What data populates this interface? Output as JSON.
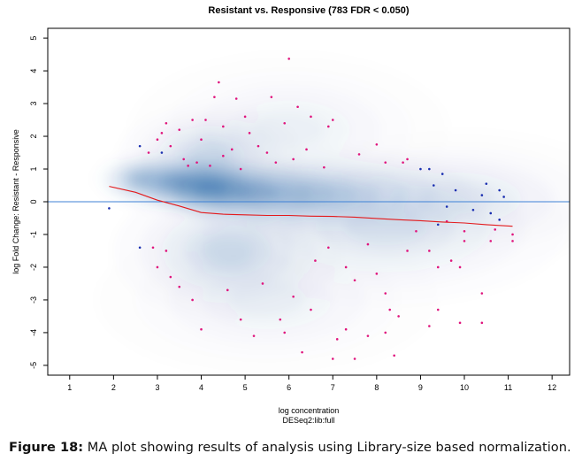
{
  "figure": {
    "caption_label": "Figure 18:",
    "caption_text": " MA plot showing results of analysis using Library-size based normalization."
  },
  "chart_data": {
    "type": "scatter",
    "title": "Resistant vs. Responsive (783 FDR < 0.050)",
    "xlabel": "log concentration",
    "xlabel_sub": "DESeq2:lib:full",
    "ylabel": "log Fold Change: Resistant - Responsive",
    "xlim": [
      0.5,
      12.4
    ],
    "ylim": [
      -5.3,
      5.3
    ],
    "xticks": [
      1,
      2,
      3,
      4,
      5,
      6,
      7,
      8,
      9,
      10,
      11,
      12
    ],
    "yticks": [
      -5,
      -4,
      -3,
      -2,
      -1,
      0,
      1,
      2,
      3,
      4,
      5
    ],
    "grid": false,
    "legend": "none",
    "reference_line_y": 0,
    "colors": {
      "density": "#08519c",
      "significant_points": "#e0157d",
      "blue_points": "#1a2fb0",
      "trend_line": "#e31a1c",
      "reference_line": "#3f82d6"
    },
    "series": [
      {
        "kind": "density",
        "clusters": [
          {
            "x": 4.2,
            "y": 0.45,
            "sx": 0.55,
            "sy": 0.35,
            "w": 1.0
          },
          {
            "x": 3.4,
            "y": 0.6,
            "sx": 0.6,
            "sy": 0.35,
            "w": 0.75
          },
          {
            "x": 5.2,
            "y": 0.3,
            "sx": 0.9,
            "sy": 0.4,
            "w": 0.7
          },
          {
            "x": 6.8,
            "y": 0.2,
            "sx": 1.3,
            "sy": 0.55,
            "w": 0.45
          },
          {
            "x": 4.6,
            "y": -1.5,
            "sx": 1.0,
            "sy": 0.8,
            "w": 0.35
          },
          {
            "x": 4.2,
            "y": 1.4,
            "sx": 0.8,
            "sy": 0.6,
            "w": 0.35
          },
          {
            "x": 8.2,
            "y": -0.8,
            "sx": 1.6,
            "sy": 0.9,
            "w": 0.25
          },
          {
            "x": 9.8,
            "y": 0.1,
            "sx": 1.5,
            "sy": 0.8,
            "w": 0.2
          },
          {
            "x": 5.5,
            "y": -3.0,
            "sx": 1.5,
            "sy": 0.9,
            "w": 0.15
          },
          {
            "x": 6.0,
            "y": 2.2,
            "sx": 1.4,
            "sy": 0.9,
            "w": 0.15
          },
          {
            "x": 2.6,
            "y": 0.7,
            "sx": 0.4,
            "sy": 0.3,
            "w": 0.5
          }
        ]
      },
      {
        "kind": "points",
        "color_key": "significant_points",
        "points": [
          [
            6.0,
            4.37
          ],
          [
            4.4,
            3.65
          ],
          [
            4.8,
            3.15
          ],
          [
            4.3,
            3.2
          ],
          [
            5.6,
            3.2
          ],
          [
            3.8,
            2.5
          ],
          [
            4.1,
            2.5
          ],
          [
            4.5,
            2.3
          ],
          [
            6.2,
            2.9
          ],
          [
            6.5,
            2.6
          ],
          [
            7.0,
            2.5
          ],
          [
            6.9,
            2.3
          ],
          [
            3.2,
            2.4
          ],
          [
            3.5,
            2.2
          ],
          [
            5.1,
            2.1
          ],
          [
            5.3,
            1.7
          ],
          [
            3.1,
            2.1
          ],
          [
            2.8,
            1.5
          ],
          [
            3.0,
            1.9
          ],
          [
            8.0,
            1.75
          ],
          [
            8.7,
            1.3
          ],
          [
            8.6,
            1.2
          ],
          [
            8.2,
            1.2
          ],
          [
            3.6,
            1.3
          ],
          [
            3.9,
            1.2
          ],
          [
            4.2,
            1.1
          ],
          [
            6.1,
            1.3
          ],
          [
            6.4,
            1.6
          ],
          [
            5.7,
            1.2
          ],
          [
            7.6,
            1.45
          ],
          [
            4.7,
            1.6
          ],
          [
            3.3,
            1.7
          ],
          [
            4.0,
            1.9
          ],
          [
            5.0,
            2.6
          ],
          [
            5.9,
            2.4
          ],
          [
            5.5,
            1.5
          ],
          [
            3.7,
            1.1
          ],
          [
            6.8,
            1.05
          ],
          [
            4.5,
            1.4
          ],
          [
            4.9,
            1.0
          ],
          [
            2.9,
            -1.4
          ],
          [
            3.2,
            -1.5
          ],
          [
            4.0,
            -3.9
          ],
          [
            4.9,
            -3.6
          ],
          [
            5.2,
            -4.1
          ],
          [
            5.9,
            -4.0
          ],
          [
            6.3,
            -4.6
          ],
          [
            7.1,
            -4.2
          ],
          [
            7.3,
            -3.9
          ],
          [
            7.0,
            -4.8
          ],
          [
            7.5,
            -4.8
          ],
          [
            7.8,
            -4.1
          ],
          [
            8.2,
            -4.0
          ],
          [
            8.4,
            -4.7
          ],
          [
            8.5,
            -3.5
          ],
          [
            8.3,
            -3.3
          ],
          [
            9.2,
            -3.8
          ],
          [
            9.4,
            -3.3
          ],
          [
            9.9,
            -3.7
          ],
          [
            10.4,
            -3.7
          ],
          [
            10.4,
            -2.8
          ],
          [
            10.0,
            -1.2
          ],
          [
            10.6,
            -1.2
          ],
          [
            11.1,
            -1.2
          ],
          [
            11.1,
            -1.0
          ],
          [
            10.7,
            -0.85
          ],
          [
            9.2,
            -1.5
          ],
          [
            8.7,
            -1.5
          ],
          [
            9.4,
            -2.0
          ],
          [
            9.9,
            -2.0
          ],
          [
            8.2,
            -2.8
          ],
          [
            7.5,
            -2.4
          ],
          [
            6.5,
            -3.3
          ],
          [
            6.1,
            -2.9
          ],
          [
            5.8,
            -3.6
          ],
          [
            3.3,
            -2.3
          ],
          [
            3.0,
            -2.0
          ],
          [
            3.5,
            -2.6
          ],
          [
            3.8,
            -3.0
          ],
          [
            4.6,
            -2.7
          ],
          [
            5.4,
            -2.5
          ],
          [
            6.9,
            -1.4
          ],
          [
            7.3,
            -2.0
          ],
          [
            6.6,
            -1.8
          ],
          [
            7.8,
            -1.3
          ],
          [
            8.9,
            -0.9
          ],
          [
            9.6,
            -0.6
          ],
          [
            10.0,
            -0.9
          ],
          [
            9.7,
            -1.8
          ],
          [
            8.0,
            -2.2
          ]
        ]
      },
      {
        "kind": "points",
        "color_key": "blue_points",
        "points": [
          [
            1.9,
            -0.2
          ],
          [
            2.6,
            1.7
          ],
          [
            2.6,
            -1.4
          ],
          [
            3.1,
            1.5
          ],
          [
            9.0,
            1.0
          ],
          [
            9.2,
            1.0
          ],
          [
            9.5,
            0.85
          ],
          [
            9.3,
            0.5
          ],
          [
            9.8,
            0.35
          ],
          [
            10.5,
            0.55
          ],
          [
            10.8,
            0.35
          ],
          [
            10.4,
            0.2
          ],
          [
            10.9,
            0.15
          ],
          [
            9.6,
            -0.15
          ],
          [
            10.2,
            -0.25
          ],
          [
            10.6,
            -0.35
          ],
          [
            10.8,
            -0.55
          ],
          [
            9.4,
            -0.7
          ]
        ]
      },
      {
        "kind": "line",
        "color_key": "trend_line",
        "points": [
          [
            1.9,
            0.47
          ],
          [
            2.5,
            0.29
          ],
          [
            3.0,
            0.05
          ],
          [
            3.5,
            -0.13
          ],
          [
            4.0,
            -0.33
          ],
          [
            4.5,
            -0.38
          ],
          [
            5.0,
            -0.4
          ],
          [
            5.5,
            -0.42
          ],
          [
            6.0,
            -0.42
          ],
          [
            6.5,
            -0.44
          ],
          [
            7.0,
            -0.45
          ],
          [
            7.5,
            -0.47
          ],
          [
            8.0,
            -0.51
          ],
          [
            8.5,
            -0.55
          ],
          [
            9.0,
            -0.58
          ],
          [
            9.5,
            -0.62
          ],
          [
            10.0,
            -0.65
          ],
          [
            10.5,
            -0.7
          ],
          [
            11.1,
            -0.75
          ]
        ]
      }
    ]
  }
}
